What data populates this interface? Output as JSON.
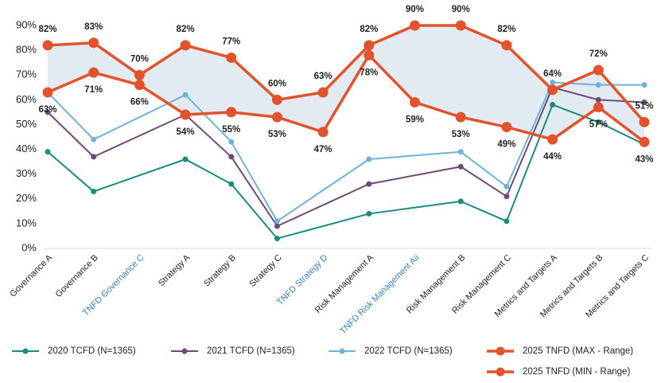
{
  "chart_data": {
    "type": "line",
    "categories": [
      "Governance A",
      "Governance B",
      "TNFD Governance C",
      "Strategy A",
      "Strategy B",
      "Strategy C",
      "TNFD Strategy D",
      "Risk Management A",
      "TNFD Risk Management Aii",
      "Risk Management B",
      "Risk Management C",
      "Metrics and Targets A",
      "Metrics and Targets B",
      "Metrics and Targets C"
    ],
    "category_colors": [
      "#222222",
      "#222222",
      "#3a7fb5",
      "#222222",
      "#222222",
      "#222222",
      "#3a7fb5",
      "#222222",
      "#3a7fb5",
      "#222222",
      "#222222",
      "#222222",
      "#222222",
      "#222222"
    ],
    "series": [
      {
        "name": "2020 TCFD (N=1365)",
        "color": "#1a8c7a",
        "values": [
          39,
          23,
          null,
          36,
          26,
          4,
          null,
          14,
          null,
          19,
          11,
          58,
          51,
          42
        ]
      },
      {
        "name": "2021 TCFD (N=1365)",
        "color": "#6b4c78",
        "values": [
          55,
          37,
          null,
          54,
          37,
          9,
          null,
          26,
          null,
          33,
          21,
          65,
          60,
          59
        ]
      },
      {
        "name": "2022 TCFD (N=1365)",
        "color": "#72b1d6",
        "values": [
          63,
          44,
          null,
          62,
          43,
          11,
          null,
          36,
          null,
          39,
          25,
          67,
          66,
          66
        ]
      },
      {
        "name": "2025 TNFD (MAX - Range)",
        "color": "#e2522c",
        "values": [
          82,
          83,
          70,
          82,
          77,
          60,
          63,
          82,
          90,
          90,
          82,
          64,
          72,
          51
        ],
        "value_labels": [
          "82%",
          "83%",
          "70%",
          "82%",
          "77%",
          "60%",
          "63%",
          "82%",
          "90%",
          "90%",
          "82%",
          "64%",
          "72%",
          "51%"
        ]
      },
      {
        "name": "2025 TNFD (MIN - Range)",
        "color": "#e2522c",
        "values": [
          63,
          71,
          66,
          54,
          55,
          53,
          47,
          78,
          59,
          53,
          49,
          44,
          57,
          43
        ],
        "value_labels": [
          "63%",
          "71%",
          "66%",
          "54%",
          "55%",
          "53%",
          "47%",
          "78%",
          "59%",
          "53%",
          "49%",
          "44%",
          "57%",
          "43%"
        ]
      }
    ],
    "ylim": [
      0,
      90
    ],
    "yticks": [
      {
        "value": 0,
        "label": "0%"
      },
      {
        "value": 10,
        "label": "10%"
      },
      {
        "value": 20,
        "label": "20%"
      },
      {
        "value": 30,
        "label": "30%"
      },
      {
        "value": 40,
        "label": "40%"
      },
      {
        "value": 50,
        "label": "50%"
      },
      {
        "value": 60,
        "label": "60%"
      },
      {
        "value": 70,
        "label": "70%"
      },
      {
        "value": 80,
        "label": "80%"
      },
      {
        "value": 90,
        "label": "90%"
      }
    ],
    "grid": false,
    "connect_gaps": true,
    "range_fill": "#e2ebf2",
    "legend": "bottom"
  }
}
